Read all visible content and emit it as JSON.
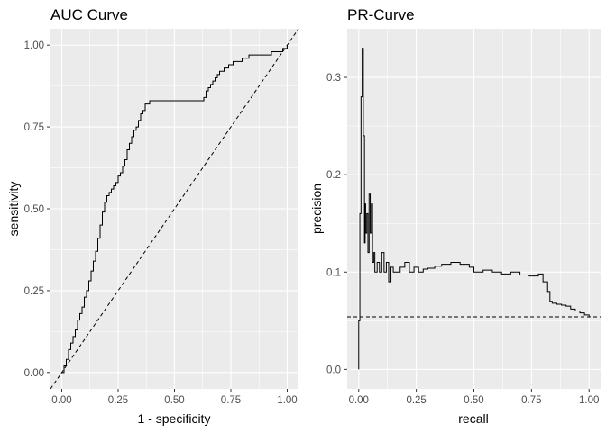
{
  "chart_data": [
    {
      "type": "line",
      "title": "AUC Curve",
      "xlabel": "1 - specificity",
      "ylabel": "sensitivity",
      "xlim": [
        -0.05,
        1.05
      ],
      "ylim": [
        -0.05,
        1.05
      ],
      "x_ticks": [
        "0.00",
        "0.25",
        "0.50",
        "0.75",
        "1.00"
      ],
      "y_ticks": [
        "0.00",
        "0.25",
        "0.50",
        "0.75",
        "1.00"
      ],
      "grid": true,
      "reference_line": {
        "style": "dashed",
        "slope": 1,
        "intercept": 0
      },
      "series": [
        {
          "x": [
            0.0,
            0.01,
            0.02,
            0.03,
            0.04,
            0.05,
            0.06,
            0.07,
            0.08,
            0.09,
            0.1,
            0.11,
            0.12,
            0.13,
            0.14,
            0.15,
            0.16,
            0.17,
            0.18,
            0.19,
            0.2,
            0.21,
            0.22,
            0.23,
            0.24,
            0.25,
            0.26,
            0.27,
            0.28,
            0.29,
            0.3,
            0.31,
            0.32,
            0.33,
            0.34,
            0.35,
            0.36,
            0.37,
            0.38,
            0.39,
            0.4,
            0.41,
            0.42,
            0.43,
            0.45,
            0.47,
            0.5,
            0.55,
            0.6,
            0.63,
            0.64,
            0.65,
            0.66,
            0.67,
            0.68,
            0.69,
            0.7,
            0.72,
            0.74,
            0.76,
            0.78,
            0.8,
            0.83,
            0.86,
            0.9,
            0.93,
            0.96,
            0.98,
            0.99,
            1.0
          ],
          "y": [
            0.0,
            0.02,
            0.04,
            0.07,
            0.09,
            0.11,
            0.13,
            0.16,
            0.18,
            0.2,
            0.23,
            0.25,
            0.28,
            0.31,
            0.34,
            0.37,
            0.41,
            0.45,
            0.49,
            0.52,
            0.54,
            0.55,
            0.56,
            0.57,
            0.58,
            0.6,
            0.61,
            0.63,
            0.65,
            0.68,
            0.7,
            0.72,
            0.74,
            0.75,
            0.77,
            0.79,
            0.8,
            0.82,
            0.82,
            0.83,
            0.83,
            0.83,
            0.83,
            0.83,
            0.83,
            0.83,
            0.83,
            0.83,
            0.83,
            0.84,
            0.86,
            0.87,
            0.88,
            0.89,
            0.9,
            0.91,
            0.92,
            0.93,
            0.94,
            0.95,
            0.95,
            0.96,
            0.97,
            0.97,
            0.97,
            0.98,
            0.98,
            0.99,
            0.99,
            1.0
          ]
        }
      ]
    },
    {
      "type": "line",
      "title": "PR-Curve",
      "xlabel": "recall",
      "ylabel": "precision",
      "xlim": [
        -0.05,
        1.05
      ],
      "ylim": [
        -0.02,
        0.35
      ],
      "x_ticks": [
        "0.00",
        "0.25",
        "0.50",
        "0.75",
        "1.00"
      ],
      "y_ticks": [
        "0.0",
        "0.1",
        "0.2",
        "0.3"
      ],
      "grid": true,
      "reference_line": {
        "style": "dashed",
        "y": 0.054
      },
      "series": [
        {
          "x": [
            0.0,
            0.0,
            0.005,
            0.01,
            0.015,
            0.02,
            0.025,
            0.028,
            0.03,
            0.035,
            0.04,
            0.045,
            0.05,
            0.055,
            0.06,
            0.065,
            0.07,
            0.08,
            0.09,
            0.1,
            0.11,
            0.12,
            0.13,
            0.14,
            0.15,
            0.16,
            0.18,
            0.2,
            0.22,
            0.24,
            0.26,
            0.28,
            0.3,
            0.33,
            0.36,
            0.4,
            0.44,
            0.48,
            0.5,
            0.54,
            0.58,
            0.62,
            0.66,
            0.7,
            0.74,
            0.78,
            0.8,
            0.82,
            0.83,
            0.84,
            0.86,
            0.88,
            0.9,
            0.92,
            0.94,
            0.96,
            0.98,
            1.0
          ],
          "y": [
            0.0,
            0.05,
            0.16,
            0.28,
            0.33,
            0.24,
            0.13,
            0.17,
            0.14,
            0.16,
            0.12,
            0.18,
            0.14,
            0.17,
            0.11,
            0.12,
            0.1,
            0.11,
            0.1,
            0.12,
            0.1,
            0.11,
            0.09,
            0.105,
            0.1,
            0.1,
            0.105,
            0.11,
            0.1,
            0.105,
            0.1,
            0.103,
            0.104,
            0.106,
            0.108,
            0.11,
            0.108,
            0.105,
            0.1,
            0.102,
            0.1,
            0.098,
            0.1,
            0.097,
            0.096,
            0.098,
            0.09,
            0.08,
            0.07,
            0.068,
            0.067,
            0.066,
            0.065,
            0.062,
            0.06,
            0.058,
            0.056,
            0.054
          ]
        }
      ]
    }
  ]
}
